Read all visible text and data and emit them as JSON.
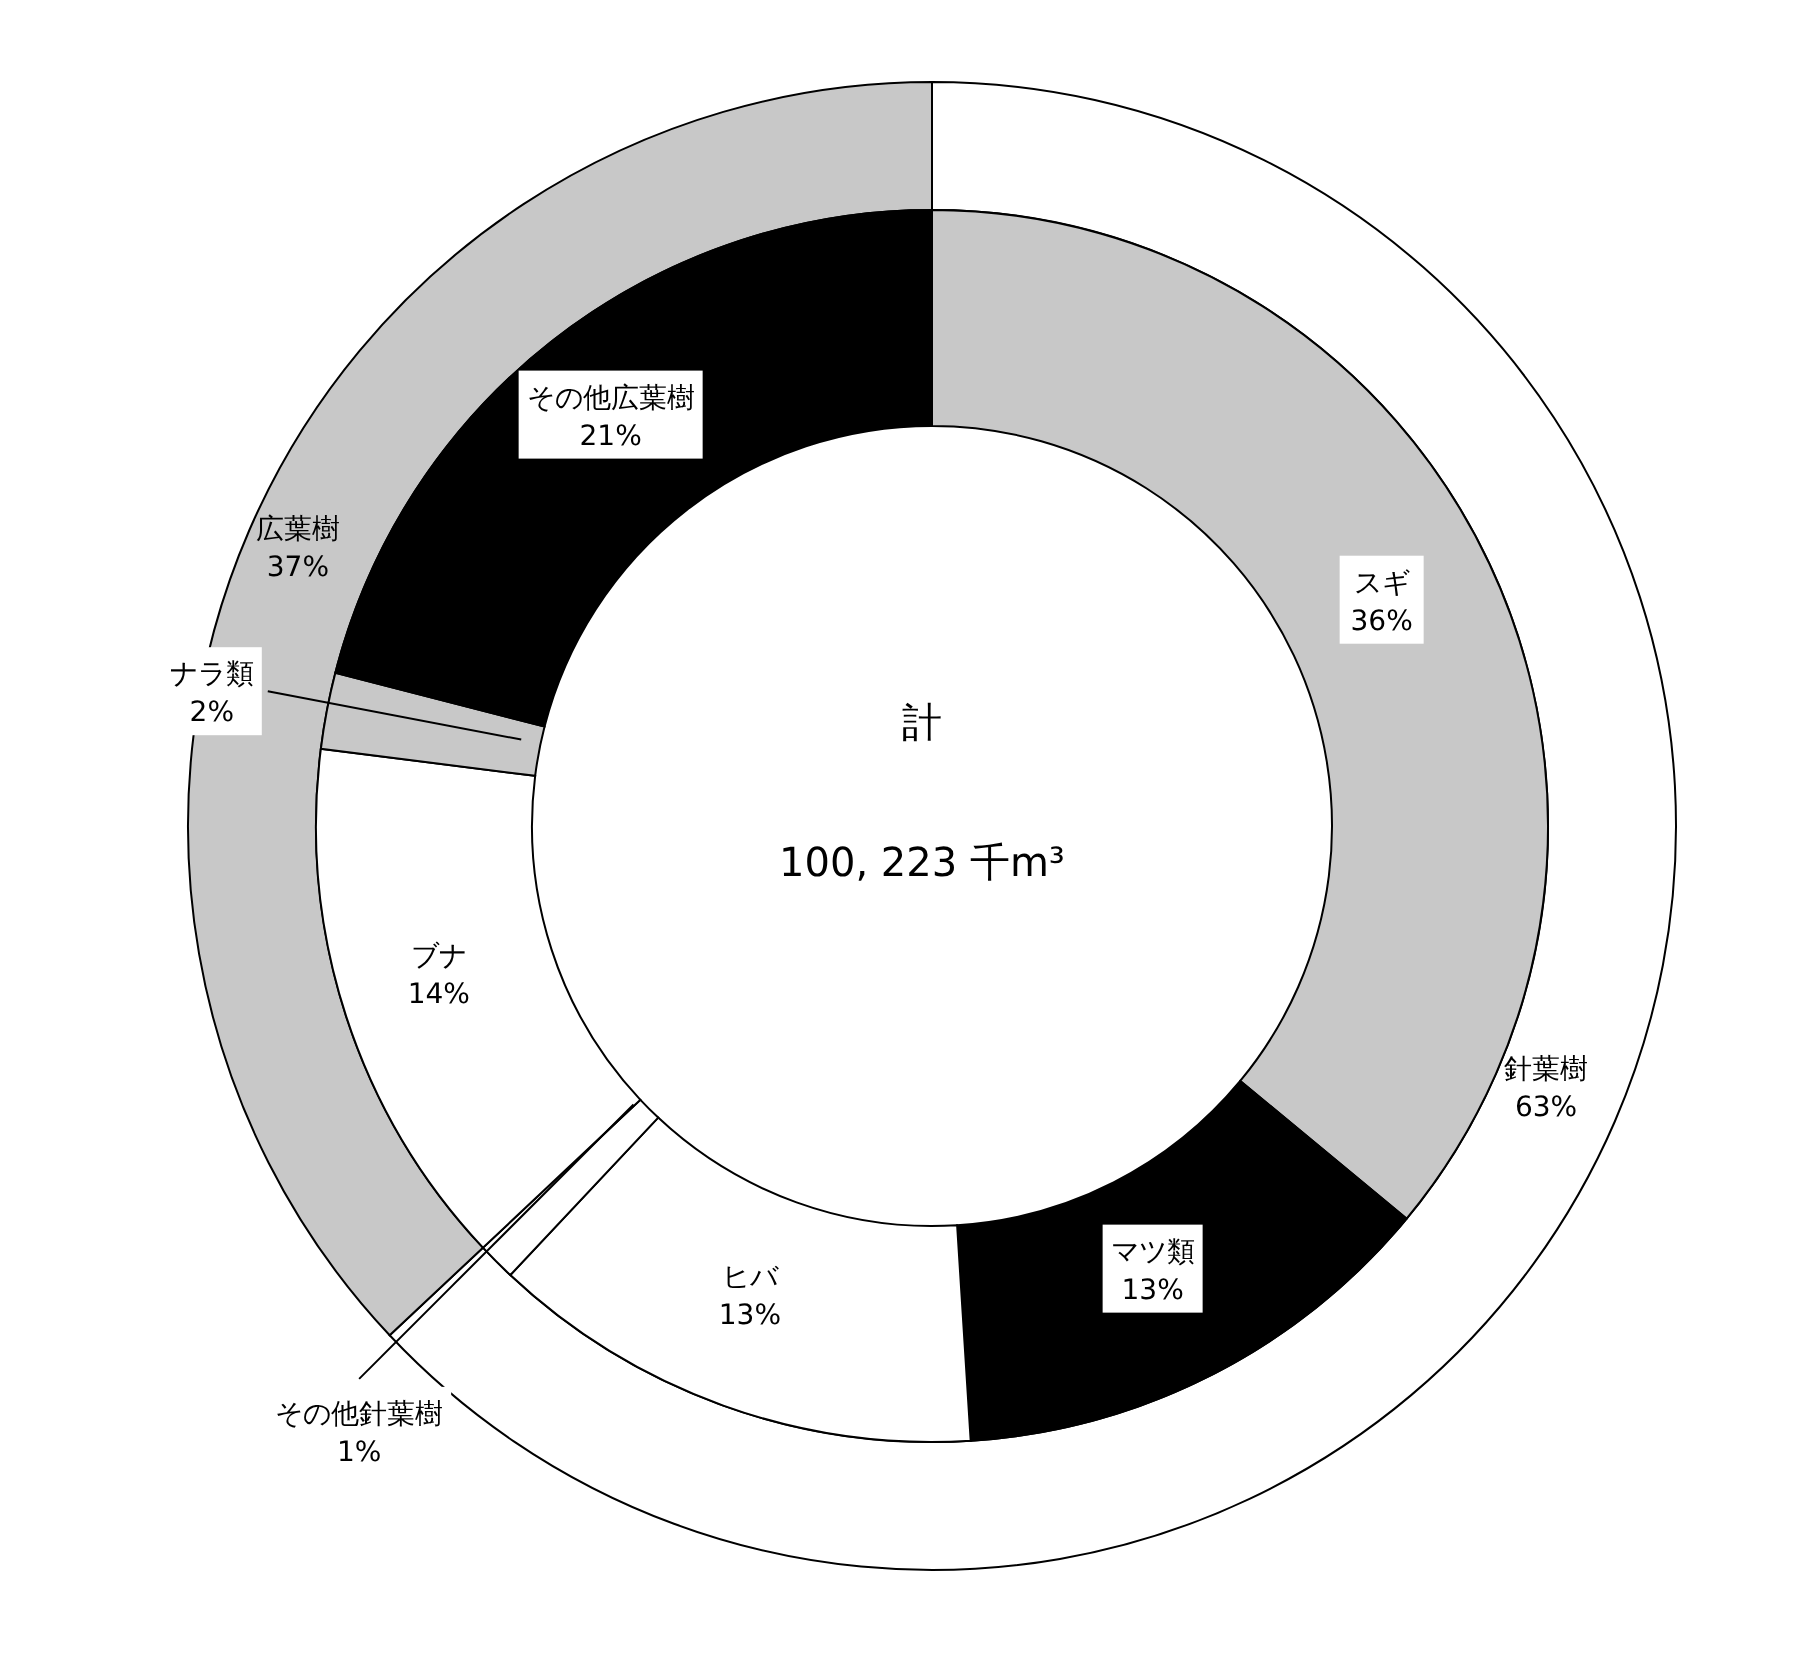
{
  "chart_data": [
    {
      "type": "donut",
      "categories": [
        "針葉樹",
        "広葉樹"
      ],
      "values": [
        63,
        37
      ],
      "value_labels": [
        "63%",
        "37%"
      ],
      "colors": [
        "#ffffff",
        "#c8c8c8"
      ],
      "annotations": [
        "計",
        "100, 223 千m³"
      ]
    },
    {
      "type": "donut",
      "categories": [
        "スギ",
        "マツ類",
        "ヒバ",
        "その他針葉樹",
        "ブナ",
        "ナラ類",
        "その他広葉樹"
      ],
      "values": [
        36,
        13,
        13,
        1,
        14,
        2,
        21
      ],
      "value_labels": [
        "36%",
        "13%",
        "13%",
        "1%",
        "14%",
        "2%",
        "21%"
      ],
      "colors": [
        "#c8c8c8",
        "#000000",
        "#ffffff",
        "#ffffff",
        "#ffffff",
        "#c8c8c8",
        "#000000"
      ]
    }
  ]
}
